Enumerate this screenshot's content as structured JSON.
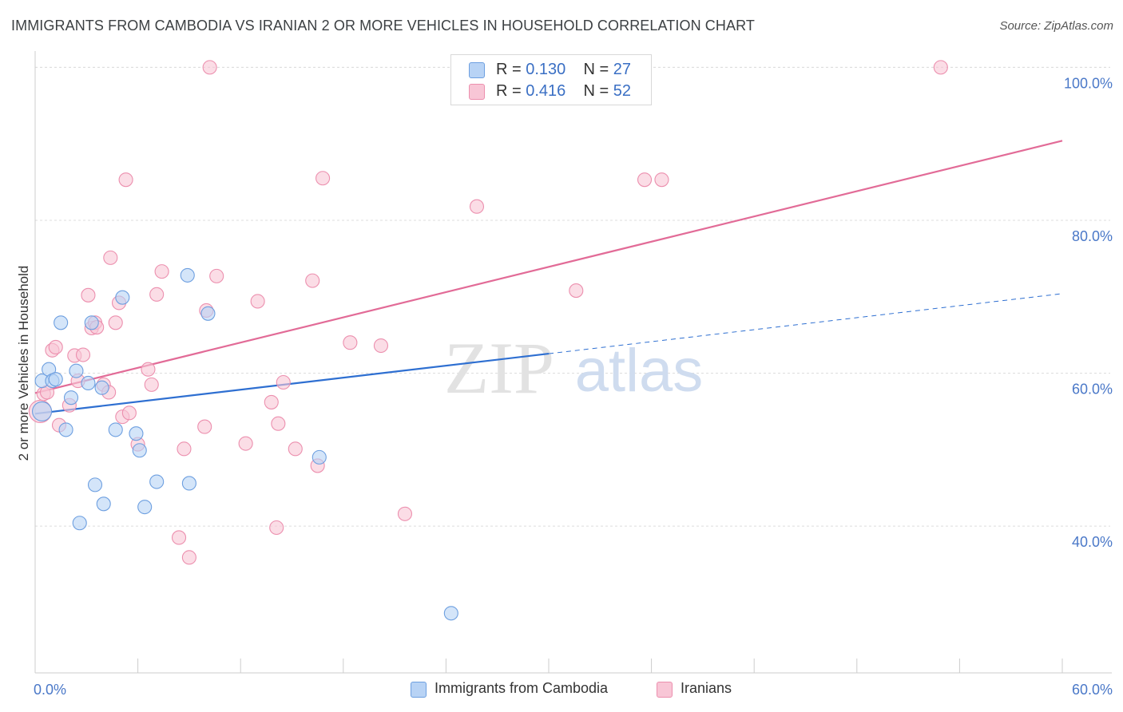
{
  "header": {
    "title": "IMMIGRANTS FROM CAMBODIA VS IRANIAN 2 OR MORE VEHICLES IN HOUSEHOLD CORRELATION CHART",
    "source": "Source: ZipAtlas.com"
  },
  "watermark": {
    "zip": "ZIP",
    "atlas": "atlas"
  },
  "colors": {
    "blue_fill": "#b8d3f5",
    "blue_stroke": "#6d9fe0",
    "blue_line": "#2e6fd1",
    "pink_fill": "#f8c6d6",
    "pink_stroke": "#ec8fae",
    "pink_line": "#e26b97",
    "grid": "#dddddd",
    "tick_text": "#4a78c8"
  },
  "legend_top": [
    {
      "r_label": "R =",
      "r_value": "0.130",
      "n_label": "N =",
      "n_value": "27"
    },
    {
      "r_label": "R =",
      "r_value": "0.416",
      "n_label": "N =",
      "n_value": "52"
    }
  ],
  "chart_data": {
    "type": "scatter",
    "title": "IMMIGRANTS FROM CAMBODIA VS IRANIAN 2 OR MORE VEHICLES IN HOUSEHOLD CORRELATION CHART",
    "xlabel": "",
    "ylabel": "2 or more Vehicles in Household",
    "xlim": [
      0,
      60
    ],
    "ylim": [
      20.8,
      101.5
    ],
    "x_tick_labels": [
      "0.0%",
      "60.0%"
    ],
    "y_ticks": [
      40,
      60,
      80,
      100
    ],
    "y_tick_labels": [
      "40.0%",
      "60.0%",
      "80.0%",
      "100.0%"
    ],
    "grid": true,
    "legend_position": "top-center",
    "series": [
      {
        "name": "Immigrants from Cambodia",
        "r": 0.13,
        "n": 27,
        "points": [
          [
            0.4,
            55.0
          ],
          [
            0.4,
            59.0
          ],
          [
            0.8,
            60.5
          ],
          [
            1.0,
            59.0
          ],
          [
            1.2,
            59.2
          ],
          [
            1.5,
            66.6
          ],
          [
            1.8,
            52.6
          ],
          [
            2.1,
            56.8
          ],
          [
            2.4,
            60.3
          ],
          [
            2.6,
            40.4
          ],
          [
            3.1,
            58.7
          ],
          [
            3.3,
            66.6
          ],
          [
            3.5,
            45.4
          ],
          [
            3.9,
            58.1
          ],
          [
            4.0,
            42.9
          ],
          [
            4.7,
            52.6
          ],
          [
            5.1,
            69.9
          ],
          [
            5.9,
            52.1
          ],
          [
            6.1,
            49.9
          ],
          [
            6.4,
            42.5
          ],
          [
            7.1,
            45.8
          ],
          [
            8.9,
            72.8
          ],
          [
            9.0,
            45.6
          ],
          [
            10.1,
            67.8
          ],
          [
            16.6,
            49.0
          ],
          [
            24.3,
            28.6
          ],
          [
            27.2,
            100.0
          ]
        ],
        "trend": {
          "x0": 0,
          "y0": 54.7,
          "x1": 60,
          "y1": 70.4,
          "solid_until_x": 30
        }
      },
      {
        "name": "Iranians",
        "r": 0.416,
        "n": 52,
        "points": [
          [
            0.3,
            55.0
          ],
          [
            0.5,
            57.3
          ],
          [
            0.7,
            57.5
          ],
          [
            1.0,
            63.0
          ],
          [
            1.2,
            63.4
          ],
          [
            1.4,
            53.2
          ],
          [
            2.0,
            55.8
          ],
          [
            2.3,
            62.3
          ],
          [
            2.5,
            59.0
          ],
          [
            2.8,
            62.4
          ],
          [
            3.1,
            70.2
          ],
          [
            3.3,
            65.9
          ],
          [
            3.5,
            66.6
          ],
          [
            3.6,
            66.0
          ],
          [
            4.0,
            58.5
          ],
          [
            4.3,
            57.5
          ],
          [
            4.4,
            75.1
          ],
          [
            4.7,
            66.6
          ],
          [
            4.9,
            69.2
          ],
          [
            5.1,
            54.3
          ],
          [
            5.3,
            85.3
          ],
          [
            5.5,
            54.8
          ],
          [
            6.0,
            50.7
          ],
          [
            6.6,
            60.5
          ],
          [
            6.8,
            58.5
          ],
          [
            7.1,
            70.3
          ],
          [
            7.4,
            73.3
          ],
          [
            8.4,
            38.5
          ],
          [
            8.7,
            50.1
          ],
          [
            9.0,
            35.9
          ],
          [
            9.9,
            53.0
          ],
          [
            10.0,
            68.2
          ],
          [
            10.2,
            100.0
          ],
          [
            10.6,
            72.7
          ],
          [
            12.3,
            50.8
          ],
          [
            13.0,
            69.4
          ],
          [
            13.8,
            56.2
          ],
          [
            14.1,
            39.8
          ],
          [
            14.2,
            53.4
          ],
          [
            14.5,
            58.8
          ],
          [
            15.2,
            50.1
          ],
          [
            16.2,
            72.1
          ],
          [
            16.5,
            47.9
          ],
          [
            16.8,
            85.5
          ],
          [
            18.4,
            64.0
          ],
          [
            20.2,
            63.6
          ],
          [
            21.6,
            41.6
          ],
          [
            25.8,
            81.8
          ],
          [
            31.6,
            70.8
          ],
          [
            35.6,
            85.3
          ],
          [
            36.6,
            85.3
          ],
          [
            52.9,
            100.0
          ]
        ],
        "trend": {
          "x0": 0,
          "y0": 57.4,
          "x1": 60,
          "y1": 90.4
        }
      }
    ]
  }
}
